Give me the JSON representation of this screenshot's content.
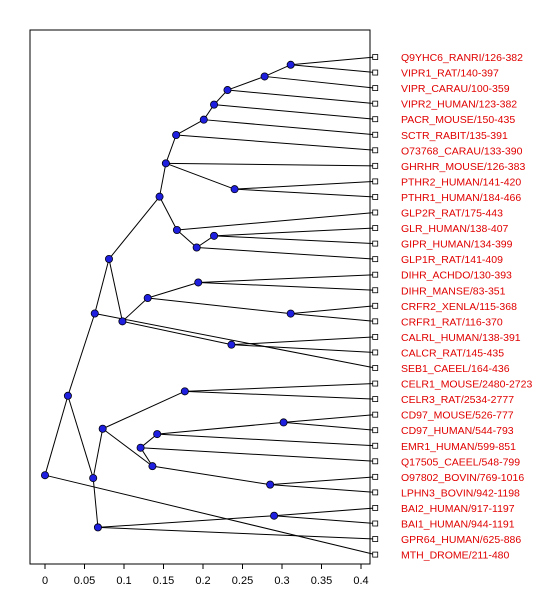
{
  "colors": {
    "frame": "#000000",
    "branch": "#000000",
    "node_fill": "#1f1fe0",
    "node_stroke": "#000010",
    "leaf_label": "#e00000",
    "axis_text": "#000000"
  },
  "chart_data": {
    "type": "dendrogram",
    "x_axis": {
      "ticks": [
        "0",
        "0.05",
        "0.1",
        "0.15",
        "0.2",
        "0.25",
        "0.3",
        "0.35",
        "0.4"
      ],
      "range": [
        0,
        0.42
      ]
    },
    "leaves": [
      {
        "label": "Q9YHC6_RANRI/126-382",
        "x": 0.418
      },
      {
        "label": "VIPR1_RAT/140-397",
        "x": 0.418
      },
      {
        "label": "VIPR_CARAU/100-359",
        "x": 0.418
      },
      {
        "label": "VIPR2_HUMAN/123-382",
        "x": 0.418
      },
      {
        "label": "PACR_MOUSE/150-435",
        "x": 0.418
      },
      {
        "label": "SCTR_RABIT/135-391",
        "x": 0.418
      },
      {
        "label": "O73768_CARAU/133-390",
        "x": 0.418
      },
      {
        "label": "GHRHR_MOUSE/126-383",
        "x": 0.418
      },
      {
        "label": "PTHR2_HUMAN/141-420",
        "x": 0.418
      },
      {
        "label": "PTHR1_HUMAN/184-466",
        "x": 0.418
      },
      {
        "label": "GLP2R_RAT/175-443",
        "x": 0.418
      },
      {
        "label": "GLR_HUMAN/138-407",
        "x": 0.418
      },
      {
        "label": "GIPR_HUMAN/134-399",
        "x": 0.418
      },
      {
        "label": "GLP1R_RAT/141-409",
        "x": 0.418
      },
      {
        "label": "DIHR_ACHDO/130-393",
        "x": 0.418
      },
      {
        "label": "DIHR_MANSE/83-351",
        "x": 0.418
      },
      {
        "label": "CRFR2_XENLA/115-368",
        "x": 0.418
      },
      {
        "label": "CRFR1_RAT/116-370",
        "x": 0.418
      },
      {
        "label": "CALRL_HUMAN/138-391",
        "x": 0.418
      },
      {
        "label": "CALCR_RAT/145-435",
        "x": 0.418
      },
      {
        "label": "SEB1_CAEEL/164-436",
        "x": 0.418
      },
      {
        "label": "CELR1_MOUSE/2480-2723",
        "x": 0.418
      },
      {
        "label": "CELR3_RAT/2534-2777",
        "x": 0.418
      },
      {
        "label": "CD97_MOUSE/526-777",
        "x": 0.418
      },
      {
        "label": "CD97_HUMAN/544-793",
        "x": 0.418
      },
      {
        "label": "EMR1_HUMAN/599-851",
        "x": 0.418
      },
      {
        "label": "Q17505_CAEEL/548-799",
        "x": 0.418
      },
      {
        "label": "O97802_BOVIN/769-1016",
        "x": 0.418
      },
      {
        "label": "LPHN3_BOVIN/942-1198",
        "x": 0.418
      },
      {
        "label": "BAI2_HUMAN/917-1197",
        "x": 0.418
      },
      {
        "label": "BAI1_HUMAN/944-1191",
        "x": 0.418
      },
      {
        "label": "GPR64_HUMAN/625-886",
        "x": 0.418
      },
      {
        "label": "MTH_DROME/211-480",
        "x": 0.418
      }
    ],
    "internal_nodes": [
      {
        "id": "n1",
        "x": 0.311,
        "children": [
          "L0",
          "L1"
        ]
      },
      {
        "id": "n2",
        "x": 0.278,
        "children": [
          "n1",
          "L2"
        ]
      },
      {
        "id": "n3",
        "x": 0.231,
        "children": [
          "n2",
          "L3"
        ]
      },
      {
        "id": "n4",
        "x": 0.214,
        "children": [
          "n3",
          "L4"
        ]
      },
      {
        "id": "n5",
        "x": 0.201,
        "children": [
          "n4",
          "L5"
        ]
      },
      {
        "id": "n6",
        "x": 0.166,
        "children": [
          "n5",
          "L6"
        ]
      },
      {
        "id": "n7",
        "x": 0.24,
        "children": [
          "L8",
          "L9"
        ]
      },
      {
        "id": "n8",
        "x": 0.153,
        "children": [
          "n6",
          "L7",
          "n7"
        ]
      },
      {
        "id": "n9",
        "x": 0.214,
        "children": [
          "L11",
          "L12"
        ]
      },
      {
        "id": "n10",
        "x": 0.192,
        "children": [
          "n9",
          "L13"
        ]
      },
      {
        "id": "n11",
        "x": 0.167,
        "children": [
          "L10",
          "n10"
        ]
      },
      {
        "id": "n12",
        "x": 0.145,
        "children": [
          "n8",
          "n11"
        ]
      },
      {
        "id": "n13",
        "x": 0.194,
        "children": [
          "L14",
          "L15"
        ]
      },
      {
        "id": "n14",
        "x": 0.311,
        "children": [
          "L16",
          "L17"
        ]
      },
      {
        "id": "n15",
        "x": 0.13,
        "children": [
          "n13",
          "n14"
        ]
      },
      {
        "id": "n16",
        "x": 0.236,
        "children": [
          "L18",
          "L19"
        ]
      },
      {
        "id": "n17",
        "x": 0.098,
        "children": [
          "n15",
          "n16"
        ]
      },
      {
        "id": "n18",
        "x": 0.081,
        "children": [
          "n12",
          "n17"
        ]
      },
      {
        "id": "n19",
        "x": 0.063,
        "children": [
          "n18",
          "L20"
        ]
      },
      {
        "id": "n20",
        "x": 0.177,
        "children": [
          "L21",
          "L22"
        ]
      },
      {
        "id": "n21",
        "x": 0.302,
        "children": [
          "L23",
          "L24"
        ]
      },
      {
        "id": "n22",
        "x": 0.142,
        "children": [
          "n21",
          "L25"
        ]
      },
      {
        "id": "n23",
        "x": 0.121,
        "children": [
          "n22",
          "L26"
        ]
      },
      {
        "id": "n24",
        "x": 0.285,
        "children": [
          "L27",
          "L28"
        ]
      },
      {
        "id": "n25",
        "x": 0.136,
        "children": [
          "n23",
          "n24"
        ]
      },
      {
        "id": "n26",
        "x": 0.073,
        "children": [
          "n20",
          "n25"
        ]
      },
      {
        "id": "n27",
        "x": 0.29,
        "children": [
          "L29",
          "L30"
        ]
      },
      {
        "id": "n28",
        "x": 0.067,
        "children": [
          "n27",
          "L31"
        ]
      },
      {
        "id": "n29",
        "x": 0.061,
        "children": [
          "n26",
          "n28"
        ]
      },
      {
        "id": "n30",
        "x": 0.029,
        "children": [
          "n19",
          "n29"
        ]
      },
      {
        "id": "n31",
        "x": 0.0,
        "children": [
          "n30",
          "L32"
        ]
      }
    ]
  }
}
